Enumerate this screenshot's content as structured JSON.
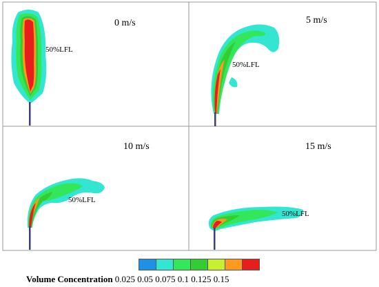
{
  "panels": [
    {
      "speed_label": "0 m/s",
      "lfl_label": "50%LFL"
    },
    {
      "speed_label": "5 m/s",
      "lfl_label": "50%LFL"
    },
    {
      "speed_label": "10 m/s",
      "lfl_label": "50%LFL"
    },
    {
      "speed_label": "15 m/s",
      "lfl_label": "50%LFL"
    }
  ],
  "legend": {
    "title": "Volume Concentration",
    "ticks": "0.025 0.05 0.075 0.1 0.125 0.15",
    "colors": [
      "#1e90e6",
      "#33e6d2",
      "#33e65a",
      "#33cc33",
      "#c8f032",
      "#ff9a1e",
      "#e61e1e"
    ]
  }
}
